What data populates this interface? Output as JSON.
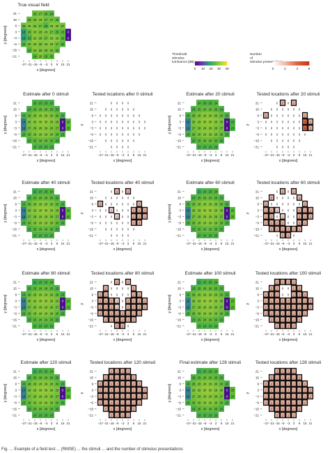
{
  "colors": {
    "threshold_scale": [
      "#4b0f8c",
      "#7a2da6",
      "#1f9a8a",
      "#56b63f",
      "#a6d23a",
      "#f6e11d"
    ],
    "presentation_scale": [
      "#ffffff",
      "#f2b9a6",
      "#e2653e",
      "#c8361a"
    ]
  },
  "axis_text": {
    "y_title": "y [degrees]",
    "y_title_short": "y",
    "x_title": "x [degrees]",
    "y_ticks": [
      "21",
      "15",
      "9",
      "3",
      "−3",
      "−9",
      "−15",
      "−21"
    ],
    "x_ticks": [
      "−27",
      "−21",
      "−15",
      "−9",
      "−3",
      "3",
      "9",
      "15",
      "21"
    ]
  },
  "legends": {
    "threshold": {
      "title": "Threshold stimulus luminance [dB]",
      "ticks": [
        "0",
        "10",
        "20",
        "30",
        "40"
      ]
    },
    "presentations": {
      "title": "Number of stimulus presentations",
      "ticks": [
        "0",
        "2",
        "4",
        "6"
      ]
    }
  },
  "caption": "Fig. ... Example of a field test ... (RMSE) ... the stimuli ... and the number of stimulus presentations",
  "chart_data": [
    {
      "type": "heatmap",
      "kind": "threshold",
      "title": "True visual field",
      "xlabel": "x [degrees]",
      "ylabel": "y [degrees]",
      "rows": [
        [
          26,
          27,
          25,
          24
        ],
        [
          26,
          28,
          29,
          27,
          27,
          26
        ],
        [
          26,
          29,
          28,
          27,
          23,
          29,
          29,
          27
        ],
        [
          18,
          26,
          29,
          28,
          29,
          27,
          25,
          25,
          0
        ],
        [
          18,
          23,
          29,
          28,
          27,
          29,
          29,
          25,
          0
        ],
        [
          24,
          28,
          29,
          28,
          29,
          29,
          27,
          24
        ],
        [
          24,
          29,
          28,
          28,
          28,
          26
        ],
        [
          24,
          28,
          25,
          25
        ]
      ]
    },
    {
      "type": "heatmap",
      "kind": "threshold",
      "title": "Estimate after 0 stimuli",
      "xlabel": "x [degrees]",
      "ylabel": "y [degrees]",
      "rows": [
        [
          23,
          23,
          23,
          23
        ],
        [
          23,
          25,
          26,
          26,
          25,
          23
        ],
        [
          23,
          26,
          28,
          29,
          29,
          28,
          26,
          23
        ],
        [
          14,
          28,
          29,
          30,
          30,
          29,
          28,
          0,
          25
        ],
        [
          14,
          27,
          28,
          29,
          29,
          28,
          27,
          0,
          25
        ],
        [
          23,
          26,
          28,
          29,
          29,
          28,
          26,
          23
        ],
        [
          23,
          25,
          26,
          26,
          25,
          23
        ],
        [
          23,
          23,
          23,
          23
        ]
      ]
    },
    {
      "type": "heatmap",
      "kind": "presentations",
      "title": "Tested locations after 0 stimuli",
      "xlabel": "x [degrees]",
      "ylabel": "y",
      "rows": [
        [
          0,
          0,
          0,
          0
        ],
        [
          0,
          0,
          0,
          0,
          0,
          0
        ],
        [
          0,
          0,
          0,
          0,
          0,
          0,
          0,
          0
        ],
        [
          0,
          0,
          0,
          0,
          0,
          0,
          0,
          0,
          0
        ],
        [
          0,
          0,
          0,
          0,
          0,
          0,
          0,
          0,
          0
        ],
        [
          0,
          0,
          0,
          0,
          0,
          0,
          0,
          0
        ],
        [
          0,
          0,
          0,
          0,
          0,
          0
        ],
        [
          0,
          0,
          0,
          0
        ]
      ]
    },
    {
      "type": "heatmap",
      "kind": "threshold",
      "title": "Estimate after 20 stimuli",
      "xlabel": "x [degrees]",
      "ylabel": "y [degrees]",
      "rows": [
        [
          24,
          23,
          23,
          24
        ],
        [
          23,
          25,
          26,
          26,
          25,
          23
        ],
        [
          23,
          26,
          28,
          29,
          29,
          28,
          26,
          23
        ],
        [
          14,
          28,
          29,
          30,
          30,
          29,
          28,
          0,
          23
        ],
        [
          14,
          27,
          28,
          29,
          29,
          28,
          27,
          0,
          23
        ],
        [
          23,
          26,
          28,
          29,
          29,
          28,
          26,
          23
        ],
        [
          23,
          25,
          26,
          26,
          25,
          23
        ],
        [
          23,
          23,
          23,
          23
        ]
      ]
    },
    {
      "type": "heatmap",
      "kind": "presentations",
      "title": "Tested locations after 20 stimuli",
      "xlabel": "x [degrees]",
      "ylabel": "y",
      "rows": [
        [
          0,
          2,
          0,
          2
        ],
        [
          0,
          0,
          0,
          0,
          0,
          0
        ],
        [
          2,
          0,
          0,
          0,
          0,
          0,
          0,
          2
        ],
        [
          0,
          0,
          0,
          0,
          0,
          0,
          0,
          4,
          2
        ],
        [
          0,
          0,
          0,
          0,
          0,
          0,
          0,
          4,
          2
        ],
        [
          0,
          0,
          0,
          0,
          0,
          0,
          0,
          0
        ],
        [
          0,
          0,
          0,
          0,
          0,
          0
        ],
        [
          0,
          0,
          0,
          0
        ]
      ]
    },
    {
      "type": "heatmap",
      "kind": "threshold",
      "title": "Estimate after 40 stimuli",
      "xlabel": "x [degrees]",
      "ylabel": "y [degrees]",
      "rows": [
        [
          21,
          23,
          23,
          24
        ],
        [
          23,
          25,
          26,
          26,
          25,
          23
        ],
        [
          23,
          26,
          28,
          29,
          29,
          28,
          26,
          23
        ],
        [
          14,
          28,
          29,
          30,
          30,
          29,
          28,
          0,
          25
        ],
        [
          14,
          27,
          28,
          29,
          29,
          28,
          27,
          0,
          25
        ],
        [
          23,
          26,
          28,
          29,
          29,
          28,
          26,
          23
        ],
        [
          23,
          25,
          26,
          26,
          25,
          23
        ],
        [
          23,
          23,
          23,
          23
        ]
      ]
    },
    {
      "type": "heatmap",
      "kind": "presentations",
      "title": "Tested locations after 40 stimuli",
      "xlabel": "x [degrees]",
      "ylabel": "y",
      "rows": [
        [
          0,
          2,
          0,
          2
        ],
        [
          0,
          0,
          0,
          0,
          0,
          0
        ],
        [
          2,
          0,
          0,
          0,
          0,
          0,
          0,
          2
        ],
        [
          0,
          0,
          1,
          0,
          0,
          0,
          2,
          2,
          2
        ],
        [
          0,
          0,
          0,
          1,
          0,
          0,
          2,
          2,
          2
        ],
        [
          0,
          0,
          0,
          0,
          0,
          0,
          2,
          2
        ],
        [
          0,
          0,
          0,
          0,
          0,
          0
        ],
        [
          0,
          0,
          0,
          0
        ]
      ]
    },
    {
      "type": "heatmap",
      "kind": "threshold",
      "title": "Estimate after 60 stimuli",
      "xlabel": "x [degrees]",
      "ylabel": "y [degrees]",
      "rows": [
        [
          21,
          23,
          23,
          24
        ],
        [
          23,
          25,
          26,
          26,
          25,
          23
        ],
        [
          23,
          26,
          28,
          29,
          29,
          28,
          26,
          23
        ],
        [
          14,
          28,
          29,
          30,
          30,
          29,
          28,
          0,
          25
        ],
        [
          14,
          27,
          28,
          29,
          29,
          28,
          27,
          0,
          25
        ],
        [
          23,
          26,
          28,
          29,
          29,
          28,
          26,
          23
        ],
        [
          23,
          25,
          26,
          26,
          25,
          23
        ],
        [
          23,
          23,
          23,
          23
        ]
      ]
    },
    {
      "type": "heatmap",
      "kind": "presentations",
      "title": "Tested locations after 60 stimuli",
      "xlabel": "x [degrees]",
      "ylabel": "y",
      "rows": [
        [
          0,
          2,
          0,
          2
        ],
        [
          2,
          0,
          0,
          0,
          0,
          2
        ],
        [
          2,
          0,
          0,
          0,
          0,
          0,
          0,
          2
        ],
        [
          2,
          2,
          1,
          0,
          0,
          0,
          2,
          2,
          2
        ],
        [
          2,
          2,
          0,
          1,
          0,
          0,
          2,
          2,
          2
        ],
        [
          2,
          2,
          2,
          2,
          0,
          0,
          2,
          2
        ],
        [
          2,
          2,
          2,
          2,
          2,
          2
        ],
        [
          0,
          2,
          2,
          0
        ]
      ]
    },
    {
      "type": "heatmap",
      "kind": "threshold",
      "title": "Estimate after 80 stimuli",
      "xlabel": "x [degrees]",
      "ylabel": "y [degrees]",
      "rows": [
        [
          21,
          23,
          23,
          24
        ],
        [
          23,
          25,
          26,
          26,
          25,
          23
        ],
        [
          23,
          26,
          28,
          29,
          29,
          28,
          26,
          23
        ],
        [
          14,
          28,
          29,
          30,
          30,
          29,
          28,
          0,
          25
        ],
        [
          14,
          27,
          28,
          29,
          29,
          28,
          27,
          0,
          25
        ],
        [
          23,
          26,
          28,
          29,
          29,
          28,
          26,
          23
        ],
        [
          23,
          25,
          26,
          26,
          25,
          23
        ],
        [
          23,
          23,
          23,
          23
        ]
      ]
    },
    {
      "type": "heatmap",
      "kind": "presentations",
      "title": "Tested locations after 80 stimuli",
      "xlabel": "x [degrees]",
      "ylabel": "y",
      "rows": [
        [
          0,
          2,
          0,
          2
        ],
        [
          2,
          0,
          0,
          0,
          0,
          2
        ],
        [
          2,
          2,
          0,
          0,
          0,
          0,
          2,
          2
        ],
        [
          2,
          2,
          2,
          1,
          0,
          2,
          2,
          2,
          2
        ],
        [
          2,
          2,
          2,
          1,
          0,
          2,
          2,
          2,
          2
        ],
        [
          2,
          2,
          2,
          2,
          2,
          2,
          2,
          2
        ],
        [
          2,
          2,
          2,
          2,
          2,
          2
        ],
        [
          0,
          2,
          2,
          0
        ]
      ]
    },
    {
      "type": "heatmap",
      "kind": "threshold",
      "title": "Estimate after 100 stimuli",
      "xlabel": "x [degrees]",
      "ylabel": "y [degrees]",
      "rows": [
        [
          21,
          23,
          23,
          24
        ],
        [
          23,
          25,
          26,
          26,
          25,
          23
        ],
        [
          23,
          26,
          28,
          29,
          29,
          28,
          26,
          23
        ],
        [
          14,
          28,
          29,
          30,
          30,
          29,
          28,
          0,
          25
        ],
        [
          14,
          27,
          28,
          29,
          29,
          28,
          27,
          0,
          25
        ],
        [
          23,
          26,
          28,
          29,
          29,
          28,
          26,
          23
        ],
        [
          23,
          25,
          26,
          26,
          25,
          23
        ],
        [
          23,
          23,
          23,
          23
        ]
      ]
    },
    {
      "type": "heatmap",
      "kind": "presentations",
      "title": "Tested locations after 100 stimuli",
      "xlabel": "x [degrees]",
      "ylabel": "y",
      "rows": [
        [
          2,
          2,
          2,
          2
        ],
        [
          2,
          2,
          0,
          0,
          2,
          2
        ],
        [
          2,
          2,
          2,
          0,
          0,
          2,
          2,
          2
        ],
        [
          2,
          2,
          2,
          2,
          2,
          2,
          2,
          2,
          2
        ],
        [
          2,
          2,
          2,
          2,
          2,
          2,
          2,
          2,
          2
        ],
        [
          2,
          2,
          2,
          2,
          2,
          2,
          2,
          2
        ],
        [
          2,
          2,
          2,
          2,
          2,
          2
        ],
        [
          2,
          2,
          2,
          2
        ]
      ]
    },
    {
      "type": "heatmap",
      "kind": "threshold",
      "title": "Estimate after 120 stimuli",
      "xlabel": "x [degrees]",
      "ylabel": "y [degrees]",
      "rows": [
        [
          21,
          23,
          23,
          24
        ],
        [
          23,
          25,
          26,
          26,
          25,
          23
        ],
        [
          23,
          26,
          28,
          29,
          29,
          28,
          26,
          23
        ],
        [
          14,
          28,
          29,
          30,
          30,
          29,
          28,
          0,
          25
        ],
        [
          14,
          27,
          28,
          29,
          29,
          28,
          27,
          0,
          25
        ],
        [
          23,
          26,
          28,
          29,
          29,
          28,
          26,
          23
        ],
        [
          23,
          25,
          26,
          26,
          25,
          23
        ],
        [
          23,
          23,
          23,
          23
        ]
      ]
    },
    {
      "type": "heatmap",
      "kind": "presentations",
      "title": "Tested locations after 120 stimuli",
      "xlabel": "x [degrees]",
      "ylabel": "y",
      "rows": [
        [
          2,
          2,
          2,
          2
        ],
        [
          2,
          2,
          2,
          2,
          2,
          2
        ],
        [
          2,
          2,
          2,
          2,
          2,
          2,
          2,
          2
        ],
        [
          2,
          2,
          2,
          2,
          2,
          2,
          2,
          2,
          2
        ],
        [
          2,
          2,
          2,
          2,
          2,
          2,
          2,
          2,
          2
        ],
        [
          2,
          2,
          2,
          2,
          2,
          2,
          2,
          2
        ],
        [
          2,
          2,
          2,
          2,
          2,
          2
        ],
        [
          2,
          2,
          2,
          2
        ]
      ]
    },
    {
      "type": "heatmap",
      "kind": "threshold",
      "title": "Final estimate after 128 stimuli",
      "xlabel": "x [degrees]",
      "ylabel": "y [degrees]",
      "rows": [
        [
          21,
          23,
          23,
          24
        ],
        [
          23,
          25,
          26,
          26,
          25,
          23
        ],
        [
          23,
          26,
          28,
          29,
          29,
          28,
          26,
          23
        ],
        [
          14,
          28,
          29,
          30,
          30,
          29,
          28,
          0,
          25
        ],
        [
          14,
          27,
          28,
          29,
          29,
          28,
          27,
          0,
          25
        ],
        [
          23,
          26,
          28,
          29,
          29,
          28,
          26,
          23
        ],
        [
          23,
          25,
          26,
          26,
          25,
          23
        ],
        [
          23,
          23,
          23,
          23
        ]
      ]
    },
    {
      "type": "heatmap",
      "kind": "presentations",
      "title": "Tested locations after 128 stimuli",
      "xlabel": "x [degrees]",
      "ylabel": "y",
      "rows": [
        [
          2,
          2,
          2,
          2
        ],
        [
          2,
          2,
          2,
          2,
          2,
          2
        ],
        [
          2,
          2,
          2,
          2,
          2,
          2,
          2,
          2
        ],
        [
          2,
          2,
          2,
          2,
          2,
          2,
          2,
          2,
          2
        ],
        [
          2,
          2,
          2,
          2,
          2,
          2,
          2,
          2,
          2
        ],
        [
          2,
          2,
          2,
          2,
          2,
          2,
          2,
          2
        ],
        [
          2,
          2,
          2,
          2,
          2,
          2
        ],
        [
          2,
          2,
          2,
          2
        ]
      ]
    }
  ]
}
